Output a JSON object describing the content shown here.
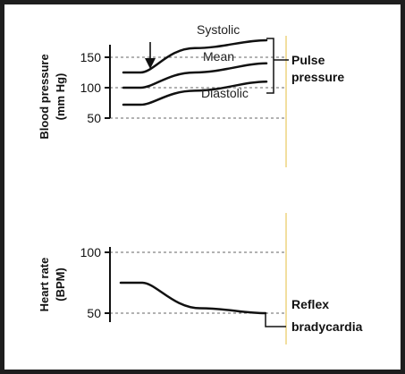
{
  "chart_data": [
    {
      "type": "line",
      "ylabel": "Blood pressure (mm Hg)",
      "yticks": [
        150,
        100,
        50
      ],
      "ylim": [
        40,
        180
      ],
      "grid": true,
      "series": [
        {
          "name": "Systolic",
          "points": [
            [
              0,
              125
            ],
            [
              0.12,
              125
            ],
            [
              0.5,
              165
            ],
            [
              1,
              178
            ]
          ]
        },
        {
          "name": "Mean",
          "points": [
            [
              0,
              100
            ],
            [
              0.12,
              100
            ],
            [
              0.5,
              125
            ],
            [
              1,
              140
            ]
          ]
        },
        {
          "name": "Diastolic",
          "points": [
            [
              0,
              72
            ],
            [
              0.12,
              72
            ],
            [
              0.5,
              95
            ],
            [
              1,
              110
            ]
          ]
        }
      ],
      "annotations": [
        "Pulse",
        "pressure"
      ]
    },
    {
      "type": "line",
      "ylabel": "Heart rate (BPM)",
      "yticks": [
        100,
        50
      ],
      "ylim": [
        40,
        110
      ],
      "grid": true,
      "series": [
        {
          "name": "",
          "points": [
            [
              0,
              75
            ],
            [
              0.15,
              75
            ],
            [
              0.55,
              54
            ],
            [
              1,
              50
            ]
          ]
        }
      ],
      "annotations": [
        "Reflex",
        "bradycardia"
      ]
    }
  ],
  "colors": {
    "line": "#111111",
    "grid": "#666666",
    "panel_edge": "#f2dfa0"
  }
}
